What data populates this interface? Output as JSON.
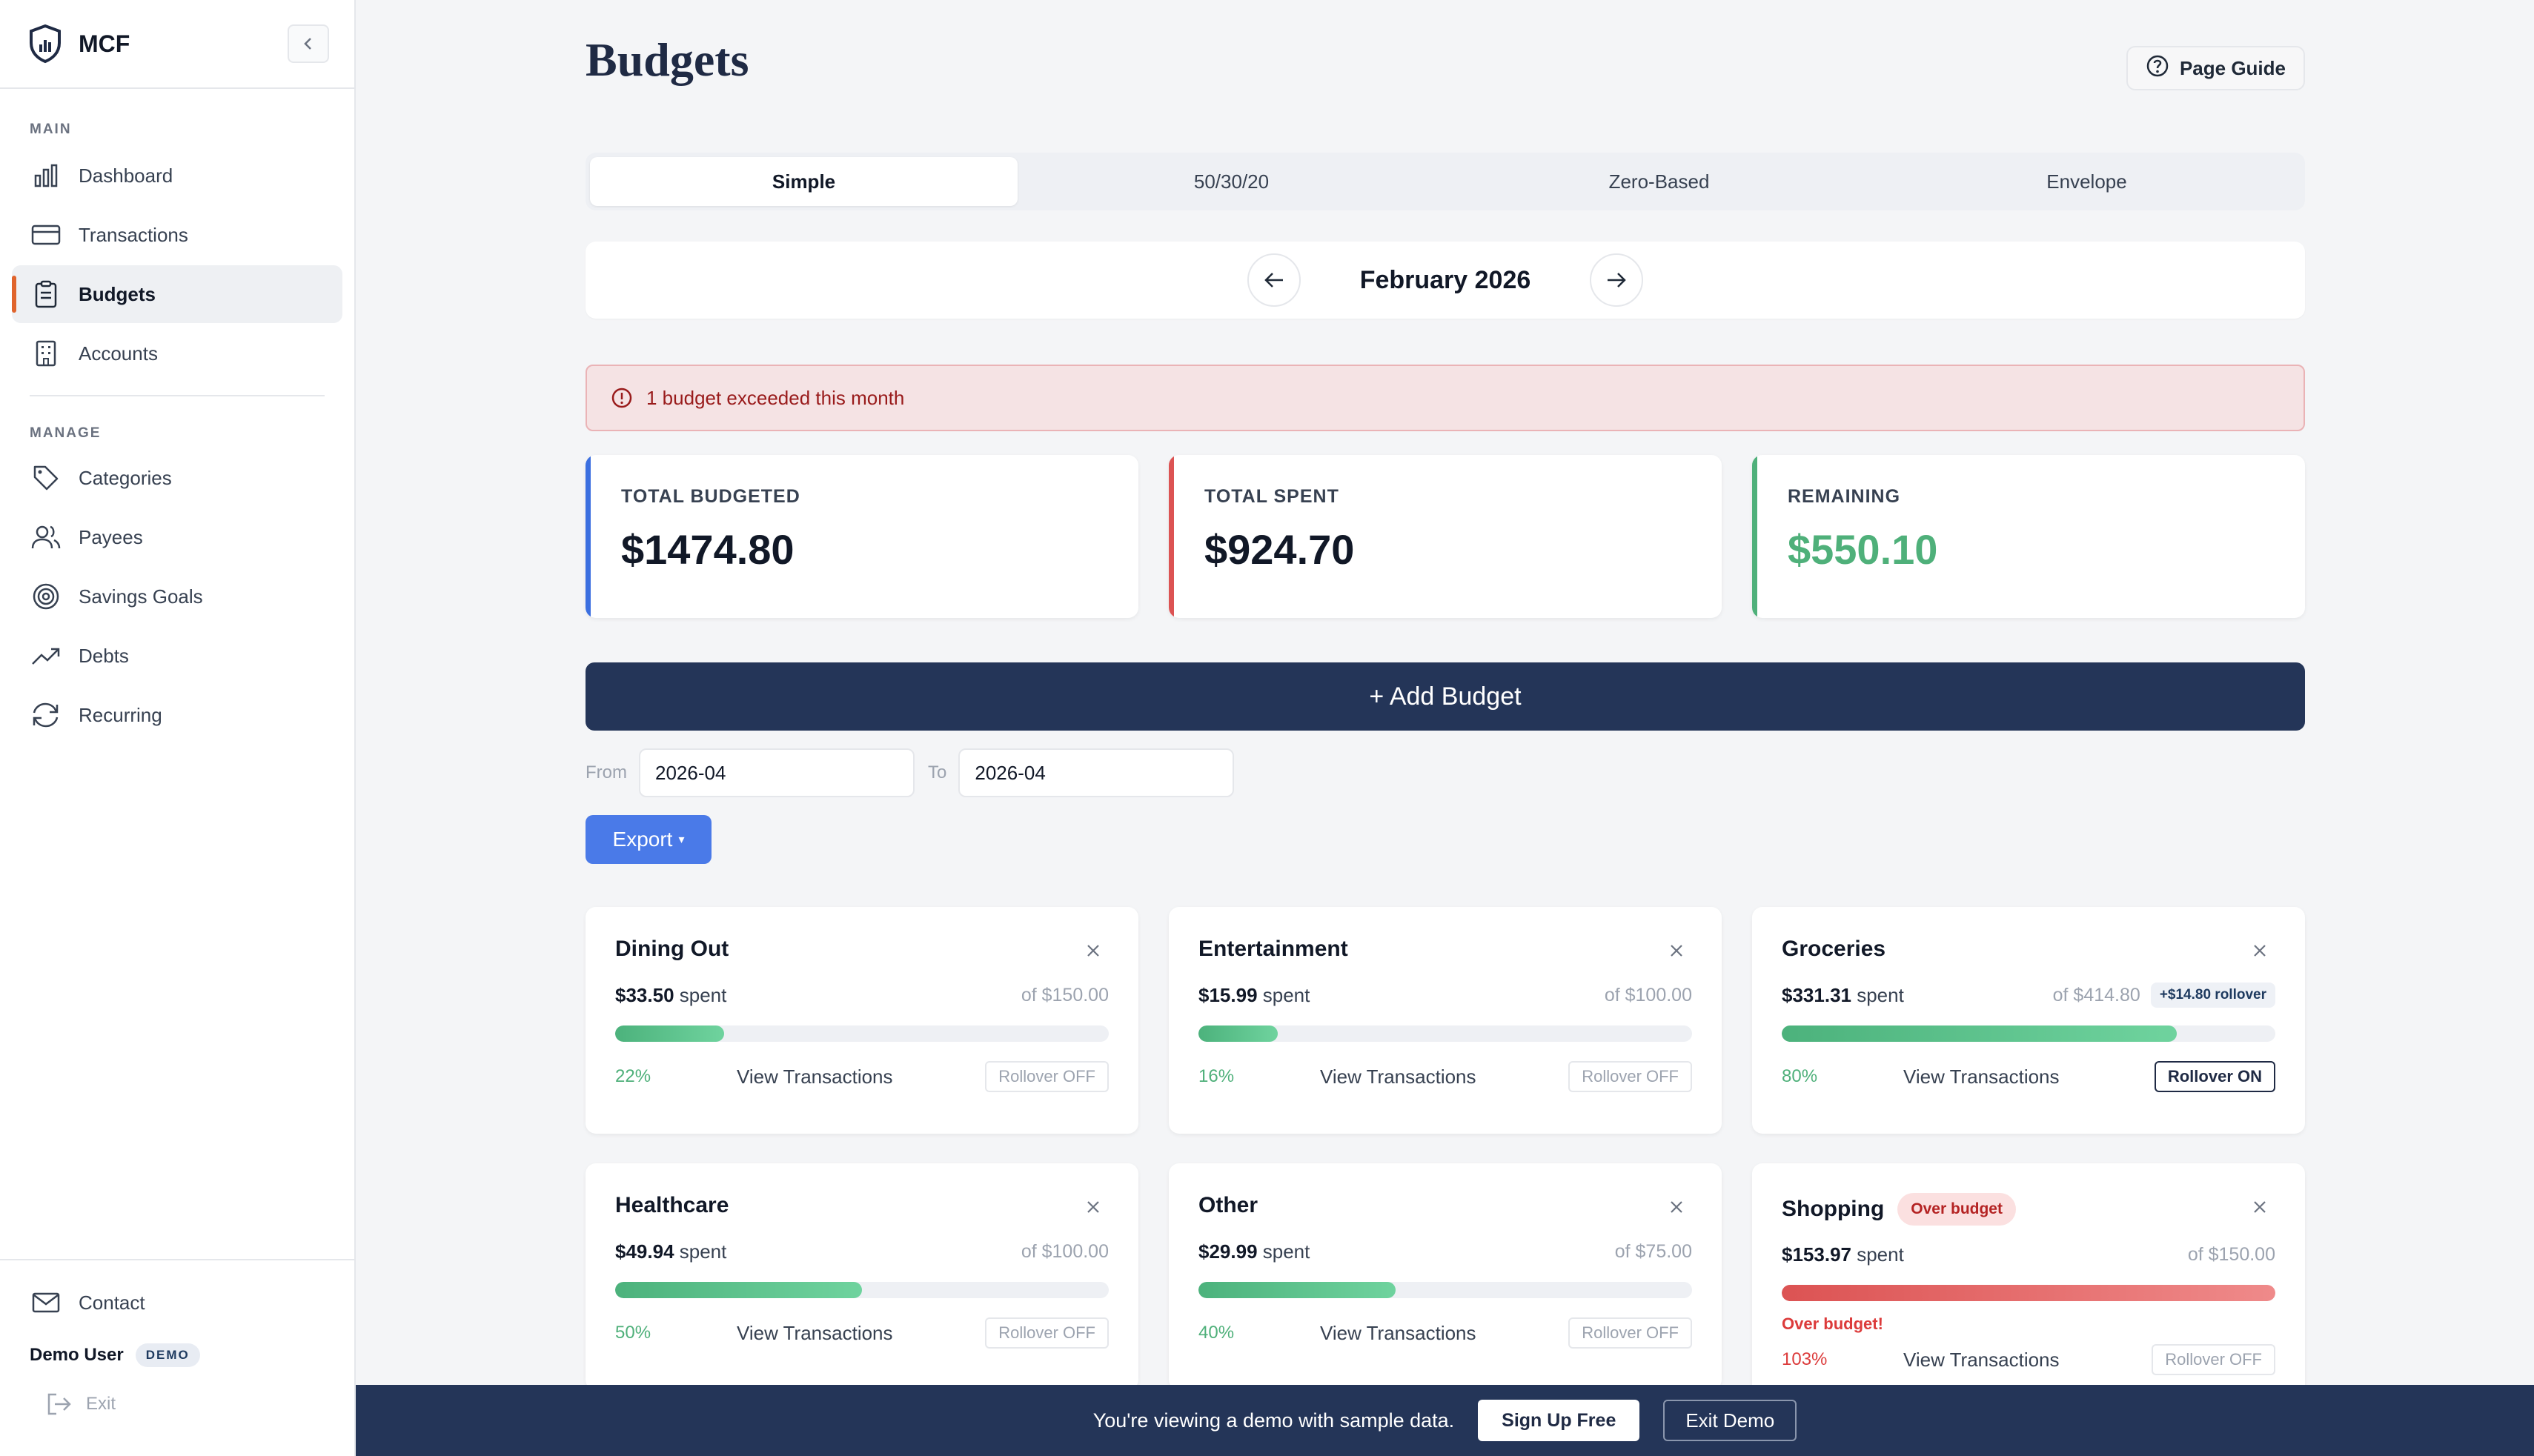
{
  "brand": {
    "name": "MCF"
  },
  "sidebar": {
    "main_label": "MAIN",
    "manage_label": "MANAGE",
    "main_items": [
      {
        "label": "Dashboard",
        "icon": "bar-chart-icon"
      },
      {
        "label": "Transactions",
        "icon": "credit-card-icon"
      },
      {
        "label": "Budgets",
        "icon": "clipboard-icon",
        "active": true
      },
      {
        "label": "Accounts",
        "icon": "building-icon"
      }
    ],
    "manage_items": [
      {
        "label": "Categories",
        "icon": "tag-icon"
      },
      {
        "label": "Payees",
        "icon": "users-icon"
      },
      {
        "label": "Savings Goals",
        "icon": "target-icon"
      },
      {
        "label": "Debts",
        "icon": "trending-up-icon"
      },
      {
        "label": "Recurring",
        "icon": "refresh-icon"
      }
    ],
    "contact": "Contact",
    "user_name": "Demo User",
    "user_badge": "DEMO",
    "exit": "Exit"
  },
  "page": {
    "title": "Budgets",
    "guide_label": "Page Guide"
  },
  "tabs": [
    "Simple",
    "50/30/20",
    "Zero-Based",
    "Envelope"
  ],
  "month": "February 2026",
  "alert": "1 budget exceeded this month",
  "stats": [
    {
      "label": "TOTAL BUDGETED",
      "value": "$1474.80",
      "accent": "#3b6fe0"
    },
    {
      "label": "TOTAL SPENT",
      "value": "$924.70",
      "accent": "#dc5353"
    },
    {
      "label": "REMAINING",
      "value": "$550.10",
      "accent": "#4fb07a"
    }
  ],
  "add_budget": "+ Add Budget",
  "range": {
    "from_label": "From",
    "from_value": "2026-04",
    "to_label": "To",
    "to_value": "2026-04"
  },
  "export": {
    "label": "Export",
    "caret": "▾"
  },
  "budgets": [
    {
      "name": "Dining Out",
      "spent": "$33.50",
      "spent_suffix": "spent",
      "of": "of $150.00",
      "pct": "22%",
      "fill_pct": 22,
      "view": "View Transactions",
      "rollover": "Rollover OFF"
    },
    {
      "name": "Entertainment",
      "spent": "$15.99",
      "spent_suffix": "spent",
      "of": "of $100.00",
      "pct": "16%",
      "fill_pct": 16,
      "view": "View Transactions",
      "rollover": "Rollover OFF"
    },
    {
      "name": "Groceries",
      "spent": "$331.31",
      "spent_suffix": "spent",
      "of": "of $414.80",
      "rollover_tag": "+$14.80 rollover",
      "pct": "80%",
      "fill_pct": 80,
      "view": "View Transactions",
      "rollover": "Rollover ON"
    },
    {
      "name": "Healthcare",
      "spent": "$49.94",
      "spent_suffix": "spent",
      "of": "of $100.00",
      "pct": "50%",
      "fill_pct": 50,
      "view": "View Transactions",
      "rollover": "Rollover OFF"
    },
    {
      "name": "Other",
      "spent": "$29.99",
      "spent_suffix": "spent",
      "of": "of $75.00",
      "pct": "40%",
      "fill_pct": 40,
      "view": "View Transactions",
      "rollover": "Rollover OFF"
    },
    {
      "name": "Shopping",
      "badge": "Over budget",
      "spent": "$153.97",
      "spent_suffix": "spent",
      "of": "of $150.00",
      "over_text": "Over budget!",
      "pct": "103%",
      "fill_pct": 100,
      "view": "View Transactions",
      "rollover": "Rollover OFF"
    }
  ],
  "demo_bar": {
    "message": "You're viewing a demo with sample data.",
    "signup": "Sign Up Free",
    "exit": "Exit Demo"
  },
  "colors": {
    "navy": "#243558",
    "accent_orange": "#e0642c",
    "green": "#4fb07a",
    "red": "#dc5353",
    "blue": "#4a7ae8"
  }
}
